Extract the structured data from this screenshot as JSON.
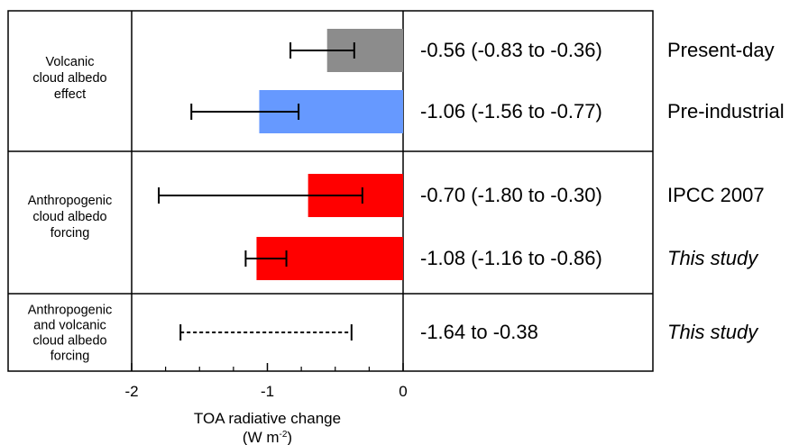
{
  "chart_data": {
    "type": "bar",
    "orientation": "horizontal",
    "xlim": [
      -2,
      0
    ],
    "xticks": [
      -2,
      -1,
      0
    ],
    "xtick_labels": [
      "-2",
      "-1",
      "0"
    ],
    "xlabel": "TOA radiative change",
    "xlabel_unit_base": "(W m",
    "xlabel_unit_sup": "-2",
    "xlabel_unit_close": ")",
    "groups": [
      {
        "label_lines": [
          "Volcanic",
          "cloud albedo",
          "effect"
        ],
        "rows": [
          {
            "value": -0.56,
            "low": -0.83,
            "high": -0.36,
            "color": "#8c8c8c",
            "dashed": false,
            "text": "-0.56 (-0.83 to -0.36)",
            "source": "Present-day",
            "italic": false
          },
          {
            "value": -1.06,
            "low": -1.56,
            "high": -0.77,
            "color": "#6699ff",
            "dashed": false,
            "text": "-1.06 (-1.56 to -0.77)",
            "source": "Pre-industrial",
            "italic": false
          }
        ]
      },
      {
        "label_lines": [
          "Anthropogenic",
          "cloud albedo",
          "forcing"
        ],
        "rows": [
          {
            "value": -0.7,
            "low": -1.8,
            "high": -0.3,
            "color": "#ff0000",
            "dashed": false,
            "text": "-0.70 (-1.80 to -0.30)",
            "source": "IPCC 2007",
            "italic": false
          },
          {
            "value": -1.08,
            "low": -1.16,
            "high": -0.86,
            "color": "#ff0000",
            "dashed": false,
            "text": "-1.08 (-1.16 to -0.86)",
            "source": "This study",
            "italic": true
          }
        ]
      },
      {
        "label_lines": [
          "Anthropogenic",
          "and volcanic",
          "cloud albedo",
          "forcing"
        ],
        "rows": [
          {
            "value": null,
            "low": -1.64,
            "high": -0.38,
            "color": null,
            "dashed": true,
            "text": "-1.64 to -0.38",
            "source": "This study",
            "italic": true
          }
        ]
      }
    ]
  }
}
